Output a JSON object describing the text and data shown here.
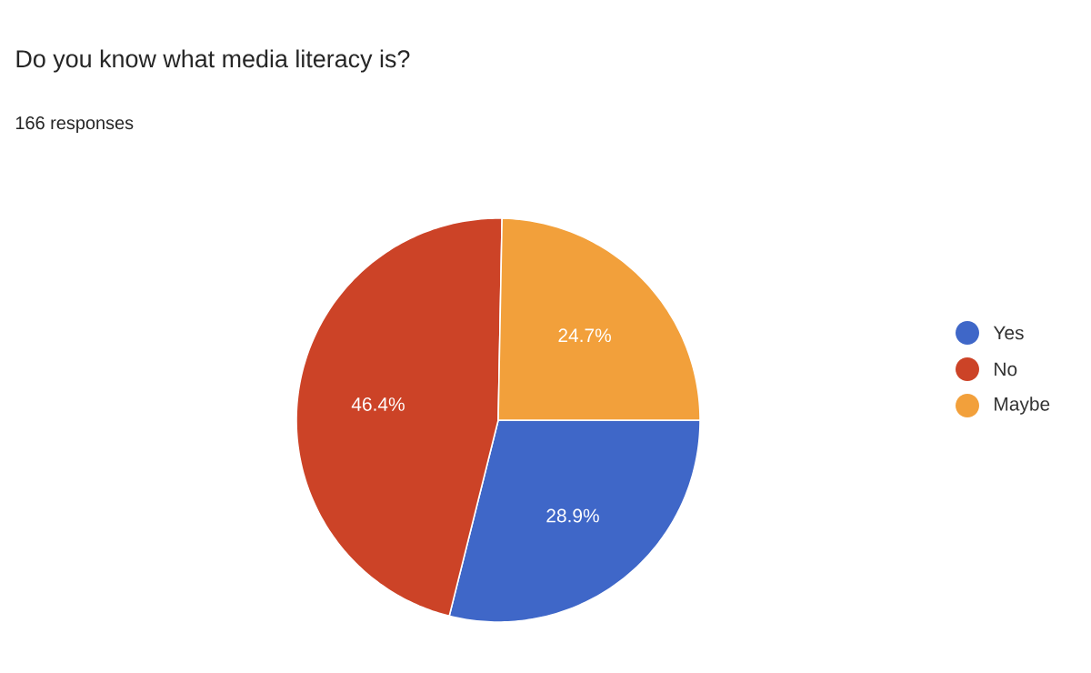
{
  "chart_data": {
    "type": "pie",
    "title": "Do you know what media literacy is?",
    "subtitle": "166 responses",
    "categories": [
      "Yes",
      "No",
      "Maybe"
    ],
    "values": [
      28.9,
      46.4,
      24.7
    ],
    "value_labels": [
      "28.9%",
      "46.4%",
      "24.7%"
    ],
    "colors": [
      "#3f67c8",
      "#cc4327",
      "#f2a03b"
    ],
    "legend": "right"
  }
}
